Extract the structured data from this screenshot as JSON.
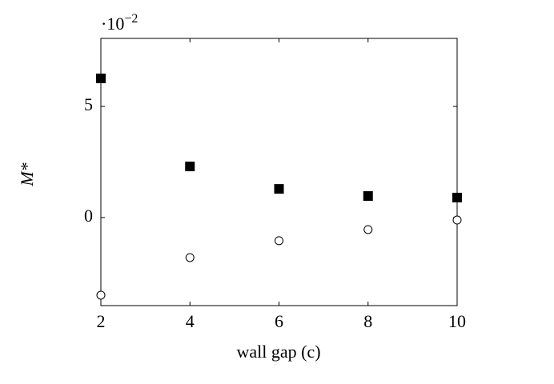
{
  "chart_data": {
    "type": "scatter",
    "x_label": "wall gap (c)",
    "y_label": "M*",
    "y_scale_base": "·10",
    "y_scale_exponent": "−2",
    "xlim": [
      2,
      10
    ],
    "xticks": [
      2,
      4,
      6,
      8,
      10
    ],
    "ylim": [
      -3.96,
      8.06
    ],
    "yticks": [
      0,
      5
    ],
    "grid": false,
    "series": [
      {
        "marker": "square",
        "color": "#000000",
        "filled": true,
        "x": [
          2,
          4,
          6,
          8,
          10
        ],
        "values": [
          6.26,
          2.3,
          1.29,
          0.97,
          0.9
        ]
      },
      {
        "marker": "circle",
        "color": "#000000",
        "filled": false,
        "x": [
          2,
          4,
          6,
          8,
          10
        ],
        "values": [
          -3.49,
          -1.8,
          -1.04,
          -0.54,
          -0.11
        ]
      }
    ]
  }
}
